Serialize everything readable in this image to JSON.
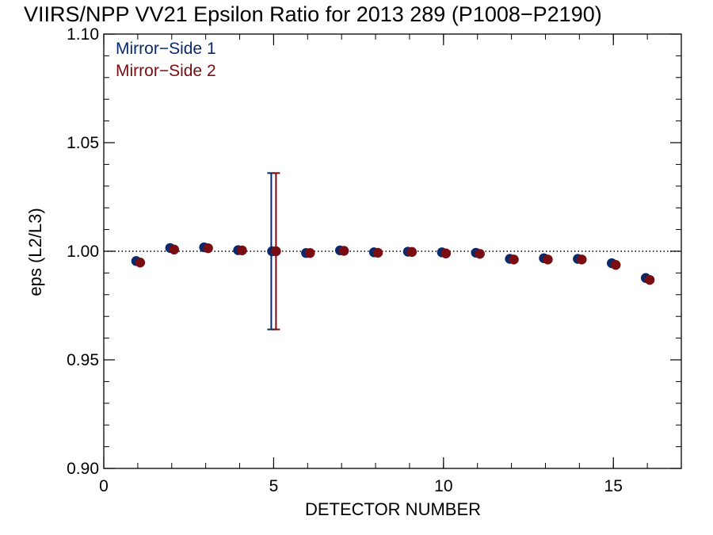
{
  "chart_data": {
    "type": "scatter",
    "title": "VIIRS/NPP VV21 Epsilon Ratio for 2013 289 (P1008−P2190)",
    "xlabel": "DETECTOR NUMBER",
    "ylabel": "eps (L2/L3)",
    "xlim": [
      0,
      17
    ],
    "ylim": [
      0.9,
      1.1
    ],
    "x_ticks": [
      0,
      5,
      10,
      15
    ],
    "x_tick_labels": [
      "0",
      "5",
      "10",
      "15"
    ],
    "y_ticks": [
      0.9,
      0.95,
      1.0,
      1.05,
      1.1
    ],
    "y_tick_labels": [
      "0.90",
      "0.95",
      "1.00",
      "1.05",
      "1.10"
    ],
    "x_minor_step": 1,
    "y_minor_step": 0.01,
    "grid": false,
    "reference_line": {
      "y": 1.0,
      "style": "dotted"
    },
    "legend_position": "top-left",
    "series": [
      {
        "name": "Mirror−Side 1",
        "color": "#0b2a6b",
        "x": [
          1,
          2,
          3,
          4,
          5,
          6,
          7,
          8,
          9,
          10,
          11,
          12,
          13,
          14,
          15,
          16
        ],
        "y": [
          0.9955,
          1.0015,
          1.0018,
          1.0005,
          1.0,
          0.9992,
          1.0004,
          0.9995,
          0.9998,
          0.9995,
          0.9993,
          0.9965,
          0.9968,
          0.9965,
          0.9945,
          0.9877
        ],
        "error_bars": [
          {
            "x": 5,
            "low": 0.964,
            "high": 1.036
          }
        ]
      },
      {
        "name": "Mirror−Side 2",
        "color": "#7a0d12",
        "x": [
          1,
          2,
          3,
          4,
          5,
          6,
          7,
          8,
          9,
          10,
          11,
          12,
          13,
          14,
          15,
          16
        ],
        "y": [
          0.9948,
          1.0008,
          1.0014,
          1.0004,
          1.0,
          0.9992,
          1.0002,
          0.9993,
          0.9997,
          0.999,
          0.9988,
          0.9962,
          0.9962,
          0.9962,
          0.9937,
          0.9868
        ],
        "error_bars": [
          {
            "x": 5,
            "low": 0.964,
            "high": 1.036
          }
        ]
      }
    ]
  }
}
